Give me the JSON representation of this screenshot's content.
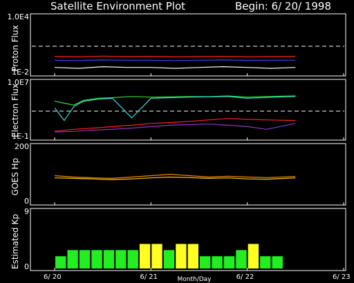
{
  "title": "Satellite Environment Plot",
  "begin_label": "Begin: 6/ 20/ 1998",
  "x_axis": {
    "label": "Month/Day",
    "ticks": [
      {
        "day": 0,
        "label": "6/ 20"
      },
      {
        "day": 1,
        "label": "6/ 21"
      },
      {
        "day": 2,
        "label": "6/ 22"
      },
      {
        "day": 3,
        "label": "6/ 23"
      }
    ],
    "range_days": [
      0,
      3
    ]
  },
  "chart_data": [
    {
      "type": "line",
      "panel": "proton",
      "ylabel": "Proton Flux",
      "yscale": "log",
      "ylim": [
        0.01,
        10000
      ],
      "ytick_labels": [
        "1.0E4",
        "1E-2"
      ],
      "threshold": {
        "value": 10,
        "style": "dashed",
        "color": "#ffffff"
      },
      "series": [
        {
          "color": "#ff2020",
          "x": [
            0,
            0.25,
            0.5,
            0.75,
            1.0,
            1.25,
            1.5,
            1.75,
            2.0,
            2.25,
            2.5
          ],
          "y": [
            0.8,
            0.7,
            0.85,
            0.75,
            0.8,
            0.7,
            0.75,
            0.8,
            0.7,
            0.75,
            0.8
          ]
        },
        {
          "color": "#4040ff",
          "x": [
            0,
            0.25,
            0.5,
            0.75,
            1.0,
            1.25,
            1.5,
            1.75,
            2.0,
            2.25,
            2.5
          ],
          "y": [
            0.3,
            0.28,
            0.32,
            0.3,
            0.3,
            0.28,
            0.3,
            0.32,
            0.29,
            0.3,
            0.3
          ]
        },
        {
          "color": "#ffffff",
          "x": [
            0,
            0.25,
            0.5,
            0.75,
            1.0,
            1.25,
            1.5,
            1.75,
            2.0,
            2.25,
            2.5
          ],
          "y": [
            0.05,
            0.04,
            0.06,
            0.05,
            0.05,
            0.04,
            0.05,
            0.06,
            0.05,
            0.04,
            0.05
          ]
        }
      ]
    },
    {
      "type": "line",
      "panel": "electron",
      "ylabel": "Electron Flux",
      "yscale": "log",
      "ylim": [
        0.1,
        10000000
      ],
      "ytick_labels": [
        "1.0E7",
        "1E-1"
      ],
      "threshold": {
        "value": 1000,
        "style": "dashed",
        "color": "#ffffff"
      },
      "series": [
        {
          "color": "#33dd33",
          "x": [
            0,
            0.1,
            0.2,
            0.3,
            0.45,
            0.6,
            0.8,
            1.0,
            1.2,
            1.4,
            1.6,
            1.8,
            2.0,
            2.2,
            2.5
          ],
          "y": [
            30000,
            15000,
            8000,
            40000,
            80000,
            100000,
            150000,
            120000,
            130000,
            150000,
            140000,
            180000,
            120000,
            150000,
            180000
          ]
        },
        {
          "color": "#33dddd",
          "x": [
            0,
            0.1,
            0.2,
            0.3,
            0.45,
            0.6,
            0.8,
            1.0,
            1.2,
            1.4,
            1.6,
            1.8,
            2.0,
            2.2,
            2.5
          ],
          "y": [
            3000,
            40,
            5000,
            30000,
            60000,
            80000,
            100,
            80000,
            100000,
            120000,
            130000,
            150000,
            80000,
            110000,
            150000
          ]
        },
        {
          "color": "#ff2020",
          "x": [
            0,
            0.2,
            0.4,
            0.6,
            0.8,
            1.0,
            1.2,
            1.4,
            1.6,
            1.8,
            2.0,
            2.2,
            2.5
          ],
          "y": [
            1,
            2,
            3,
            5,
            8,
            15,
            20,
            30,
            50,
            80,
            60,
            50,
            40
          ]
        },
        {
          "color": "#9933cc",
          "x": [
            0,
            0.2,
            0.4,
            0.6,
            0.8,
            1.0,
            1.2,
            1.4,
            1.6,
            1.8,
            2.0,
            2.2,
            2.5
          ],
          "y": [
            0.8,
            1,
            1.5,
            2,
            3,
            5,
            8,
            10,
            12,
            8,
            5,
            2,
            15
          ]
        }
      ]
    },
    {
      "type": "line",
      "panel": "goes_hp",
      "ylabel": "GOES Hp",
      "ylim": [
        0,
        200
      ],
      "ytick_labels": [
        "200",
        "0"
      ],
      "series": [
        {
          "color": "#ff8800",
          "x": [
            0,
            0.2,
            0.4,
            0.6,
            0.8,
            1.0,
            1.2,
            1.4,
            1.6,
            1.8,
            2.0,
            2.2,
            2.5
          ],
          "y": [
            100,
            95,
            92,
            90,
            95,
            100,
            105,
            100,
            95,
            98,
            95,
            93,
            97
          ]
        },
        {
          "color": "#ffcc00",
          "x": [
            0,
            0.2,
            0.4,
            0.6,
            0.8,
            1.0,
            1.2,
            1.4,
            1.6,
            1.8,
            2.0,
            2.2,
            2.5
          ],
          "y": [
            92,
            90,
            88,
            85,
            88,
            92,
            95,
            93,
            90,
            92,
            88,
            87,
            92
          ]
        }
      ]
    },
    {
      "type": "bar",
      "panel": "kp",
      "ylabel": "Estimated Kp",
      "ylim": [
        0,
        9
      ],
      "ytick_labels": [
        "9",
        "0"
      ],
      "x": [
        0,
        0.125,
        0.25,
        0.375,
        0.5,
        0.625,
        0.75,
        0.875,
        1.0,
        1.125,
        1.25,
        1.375,
        1.5,
        1.625,
        1.75,
        1.875,
        2.0,
        2.125,
        2.25,
        2.375
      ],
      "values": [
        2,
        3,
        3,
        3,
        3,
        3,
        3,
        4,
        4,
        3,
        4,
        4,
        2,
        2,
        2,
        3,
        4,
        2,
        2,
        0
      ],
      "colors": {
        "green": "#22ee22",
        "yellow": "#ffff22"
      },
      "yellow_threshold": 4
    }
  ]
}
